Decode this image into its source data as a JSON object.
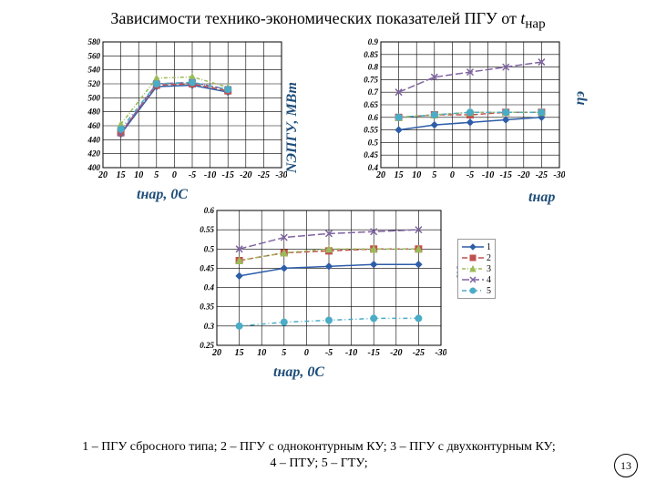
{
  "title_pre": "Зависимости технико-экономических показателей ПГУ от ",
  "title_ital": "t",
  "title_sub": "нар",
  "colors": {
    "s1": "#2e5ea8",
    "s2": "#c0504d",
    "s3": "#9bbb59",
    "s4": "#8064a2",
    "s5": "#4bacc6",
    "grid": "#000000",
    "bg": "#ffffff"
  },
  "x_ticks": [
    20,
    15,
    10,
    5,
    0,
    -5,
    -10,
    -15,
    -20,
    -25,
    -30
  ],
  "x_label": "tнар, 0С",
  "chart1": {
    "y_label": "NЭПГУ, МВт",
    "y_ticks": [
      400,
      420,
      440,
      460,
      480,
      500,
      520,
      540,
      560,
      580
    ],
    "ylim": [
      400,
      580
    ],
    "series": {
      "s1": [
        448,
        516,
        518,
        508,
        null
      ],
      "s2": [
        450,
        518,
        520,
        510,
        null
      ],
      "s3": [
        462,
        528,
        530,
        515,
        null
      ],
      "s4": [
        450,
        520,
        522,
        512,
        null
      ],
      "s5": [
        455,
        520,
        522,
        512,
        null
      ]
    },
    "xvals": [
      15,
      5,
      -5,
      -15,
      -25
    ]
  },
  "chart2": {
    "y_label": "ηэ",
    "y_ticks": [
      0.4,
      0.45,
      0.5,
      0.55,
      0.6,
      0.65,
      0.7,
      0.75,
      0.8,
      0.85,
      0.9
    ],
    "ylim": [
      0.4,
      0.9
    ],
    "series": {
      "s1": [
        0.55,
        0.57,
        0.58,
        0.59,
        0.6
      ],
      "s2": [
        0.6,
        0.61,
        0.61,
        0.62,
        0.62
      ],
      "s3": [
        0.6,
        0.61,
        0.62,
        0.62,
        0.62
      ],
      "s4": [
        0.7,
        0.76,
        0.78,
        0.8,
        0.82
      ],
      "s5": [
        0.6,
        0.61,
        0.62,
        0.62,
        0.62
      ]
    },
    "xvals": [
      15,
      5,
      -5,
      -15,
      -25
    ]
  },
  "chart3": {
    "y_label": "ηэ",
    "y_ticks": [
      0.25,
      0.3,
      0.35,
      0.4,
      0.45,
      0.5,
      0.55,
      0.6
    ],
    "ylim": [
      0.25,
      0.6
    ],
    "series": {
      "s1": [
        0.43,
        0.45,
        0.455,
        0.46,
        0.46
      ],
      "s2": [
        0.47,
        0.49,
        0.495,
        0.5,
        0.5
      ],
      "s3": [
        0.47,
        0.49,
        0.5,
        0.5,
        0.5
      ],
      "s4": [
        0.5,
        0.53,
        0.54,
        0.545,
        0.55
      ],
      "s5": [
        0.3,
        0.31,
        0.315,
        0.32,
        0.32
      ]
    },
    "xvals": [
      15,
      5,
      -5,
      -15,
      -25
    ]
  },
  "legend": [
    "1",
    "2",
    "3",
    "4",
    "5"
  ],
  "caption_line1": "1 – ПГУ сбросного типа; 2 – ПГУ с одноконтурным КУ; 3 – ПГУ с двухконтурным КУ;",
  "caption_line2": "4 – ПТУ; 5 – ГТУ;",
  "page_number": "13",
  "chart3_xlabel_extra": "tнар",
  "markers": {
    "s1": "diamond",
    "s2": "square",
    "s3": "triangle",
    "s4": "x",
    "s5": "circle"
  },
  "dash": {
    "s1": "",
    "s2": "6,3",
    "s3": "4,2,1,2",
    "s4": "8,3",
    "s5": "5,3,1,3"
  }
}
